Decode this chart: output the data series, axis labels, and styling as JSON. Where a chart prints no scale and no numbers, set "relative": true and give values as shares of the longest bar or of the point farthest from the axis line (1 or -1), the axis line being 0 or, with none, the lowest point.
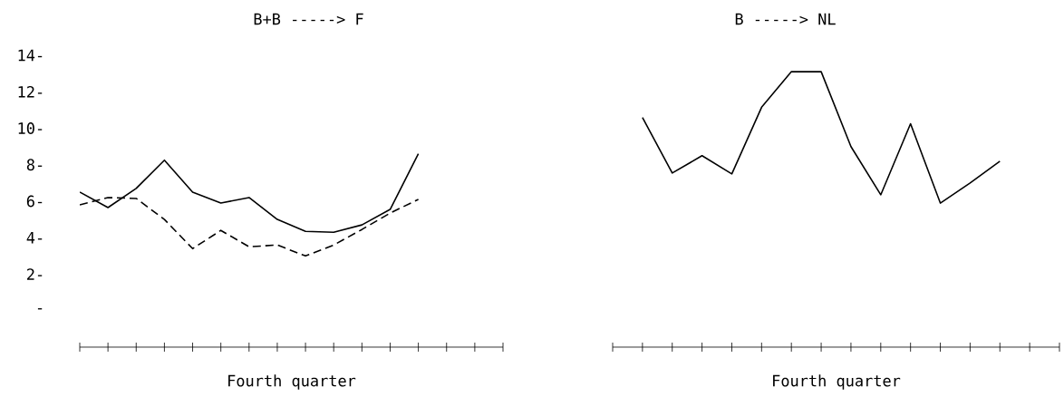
{
  "chart_data": [
    {
      "type": "line",
      "title": "B+B -----> F",
      "xlabel": "Fourth quarter",
      "categories": [
        null,
        null,
        null,
        null,
        null,
        null,
        null,
        null,
        null,
        null,
        null,
        null,
        null,
        null,
        null,
        null
      ],
      "series": [
        {
          "color": "#000000",
          "line_style": "solid",
          "values": [
            6.5,
            5.65,
            6.7,
            8.25,
            6.5,
            5.9,
            6.2,
            5.0,
            4.35,
            4.3,
            4.7,
            5.55,
            8.6,
            null,
            null,
            null
          ]
        },
        {
          "color": "#000000",
          "line_style": "dashed",
          "values": [
            5.8,
            6.2,
            6.15,
            5.0,
            3.4,
            4.4,
            3.5,
            3.6,
            3.0,
            3.6,
            4.45,
            5.35,
            6.1,
            null,
            null,
            null
          ]
        }
      ],
      "ylim": [
        -2,
        14
      ],
      "yticks": [
        {
          "value": 0,
          "label": "-"
        },
        {
          "value": 2,
          "label": "2-"
        },
        {
          "value": 4,
          "label": "4-"
        },
        {
          "value": 6,
          "label": "6-"
        },
        {
          "value": 8,
          "label": "8-"
        },
        {
          "value": 10,
          "label": "10-"
        },
        {
          "value": 12,
          "label": "12-"
        },
        {
          "value": 14,
          "label": "14-"
        }
      ],
      "marker": "none"
    },
    {
      "type": "line",
      "title": "B -----> NL",
      "xlabel": "Fourth quarter",
      "relative": true,
      "categories": [
        null,
        null,
        null,
        null,
        null,
        null,
        null,
        null,
        null,
        null,
        null,
        null,
        null,
        null,
        null,
        null
      ],
      "series": [
        {
          "color": "#000000",
          "line_style": "solid",
          "values": [
            null,
            0.834,
            0.632,
            0.695,
            0.629,
            0.871,
            1,
            1,
            0.728,
            0.553,
            0.811,
            0.523,
            0.596,
            0.675,
            null,
            null
          ]
        }
      ],
      "marker": "none"
    }
  ]
}
